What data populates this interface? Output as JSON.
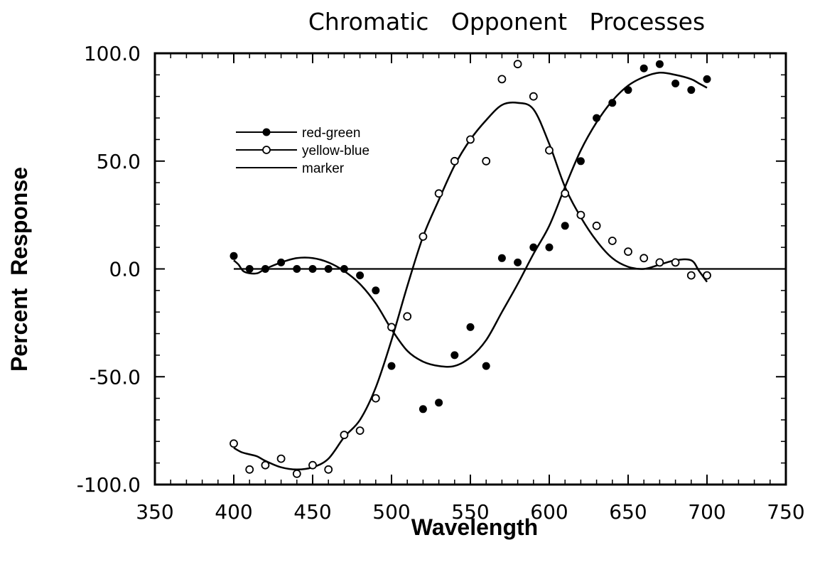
{
  "chart_data": {
    "type": "scatter",
    "title": "Chromatic   Opponent   Processes",
    "xlabel": "Wavelength",
    "ylabel": "Percent  Response",
    "xlim": [
      350,
      750
    ],
    "ylim": [
      -100,
      100
    ],
    "x_ticks": [
      "350",
      "400",
      "450",
      "500",
      "550",
      "600",
      "650",
      "700",
      "750"
    ],
    "x_tick_values": [
      350,
      400,
      450,
      500,
      550,
      600,
      650,
      700,
      750
    ],
    "y_ticks": [
      "100.0",
      "50.0",
      "0.0",
      "-50.0",
      "-100.0"
    ],
    "y_tick_values": [
      100,
      50,
      0,
      -50,
      -100
    ],
    "grid": false,
    "legend_position": "top-left",
    "series": [
      {
        "name": "red-green",
        "marker": "filled-circle",
        "x": [
          400,
          410,
          420,
          430,
          440,
          450,
          460,
          470,
          480,
          490,
          500,
          520,
          530,
          540,
          550,
          560,
          570,
          580,
          590,
          600,
          610,
          620,
          630,
          640,
          650,
          660,
          670,
          680,
          690,
          700
        ],
        "y": [
          6,
          0,
          0,
          3,
          0,
          0,
          0,
          0,
          -3,
          -10,
          -45,
          -65,
          -62,
          -40,
          -27,
          -45,
          5,
          3,
          10,
          10,
          20,
          50,
          70,
          77,
          83,
          93,
          95,
          86,
          83,
          88
        ]
      },
      {
        "name": "yellow-blue",
        "marker": "open-circle",
        "x": [
          400,
          410,
          420,
          430,
          440,
          450,
          460,
          470,
          480,
          490,
          500,
          510,
          520,
          530,
          540,
          550,
          560,
          570,
          580,
          590,
          600,
          610,
          620,
          630,
          640,
          650,
          660,
          670,
          680,
          690,
          700
        ],
        "y": [
          -81,
          -93,
          -91,
          -88,
          -95,
          -91,
          -93,
          -77,
          -75,
          -60,
          -27,
          -22,
          15,
          35,
          50,
          60,
          50,
          88,
          95,
          80,
          55,
          35,
          25,
          20,
          13,
          8,
          5,
          3,
          3,
          -3,
          -3
        ]
      },
      {
        "name": "marker",
        "marker": "line",
        "x": [
          400,
          750
        ],
        "y": [
          0,
          0
        ]
      }
    ],
    "fit_curves": [
      {
        "x": [
          400,
          405,
          410,
          415,
          420,
          430,
          440,
          450,
          460,
          470,
          480,
          490,
          500,
          510,
          520,
          530,
          540,
          550,
          560,
          570,
          580,
          590,
          600,
          610,
          620,
          630,
          640,
          650,
          660,
          670,
          680,
          690,
          695,
          700
        ],
        "y": [
          -83,
          -85,
          -86,
          -87,
          -89,
          -92,
          -93,
          -92,
          -88,
          -78,
          -70,
          -55,
          -33,
          -8,
          15,
          32,
          48,
          60,
          69,
          76,
          77,
          74,
          58,
          38,
          24,
          13,
          5,
          1,
          0,
          2,
          4,
          4,
          -1,
          -6
        ]
      },
      {
        "x": [
          400,
          403,
          406,
          410,
          415,
          420,
          430,
          440,
          450,
          460,
          470,
          480,
          490,
          500,
          510,
          520,
          530,
          540,
          550,
          560,
          570,
          580,
          590,
          600,
          610,
          620,
          630,
          640,
          650,
          660,
          670,
          680,
          690,
          695,
          700
        ],
        "y": [
          4,
          2,
          -1,
          -2,
          -2,
          0,
          3,
          5,
          5,
          3,
          -1,
          -7,
          -16,
          -28,
          -38,
          -43,
          -45,
          -45,
          -41,
          -33,
          -20,
          -7,
          7,
          20,
          38,
          55,
          68,
          78,
          85,
          89,
          91,
          90,
          88,
          86,
          84
        ]
      }
    ]
  }
}
